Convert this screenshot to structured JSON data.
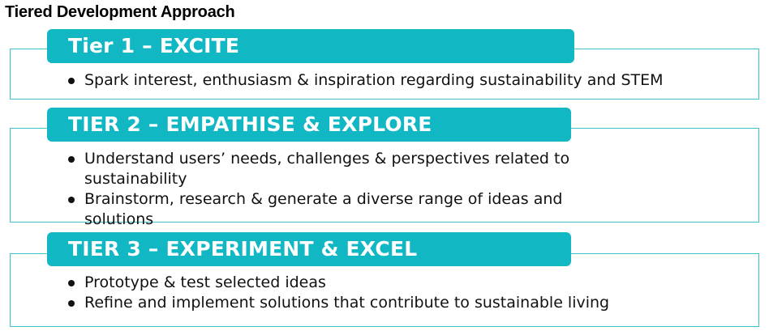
{
  "title": "Tiered Development Approach",
  "colors": {
    "header_fill": "#12b7c4",
    "box_border": "#3ec3cd",
    "header_text": "#ffffff",
    "body_text": "#111111"
  },
  "tiers": [
    {
      "header": "Tier 1 – EXCITE",
      "bullets": [
        "Spark interest, enthusiasm & inspiration regarding sustainability and STEM"
      ]
    },
    {
      "header": "TIER 2 – EMPATHISE & EXPLORE",
      "bullets": [
        "Understand users’ needs, challenges & perspectives related to sustainability",
        "Brainstorm, research & generate a diverse range of ideas and solutions"
      ]
    },
    {
      "header": "TIER 3 – EXPERIMENT & EXCEL",
      "bullets": [
        "Prototype & test selected ideas",
        "Refine and implement solutions that contribute to sustainable living"
      ]
    }
  ]
}
